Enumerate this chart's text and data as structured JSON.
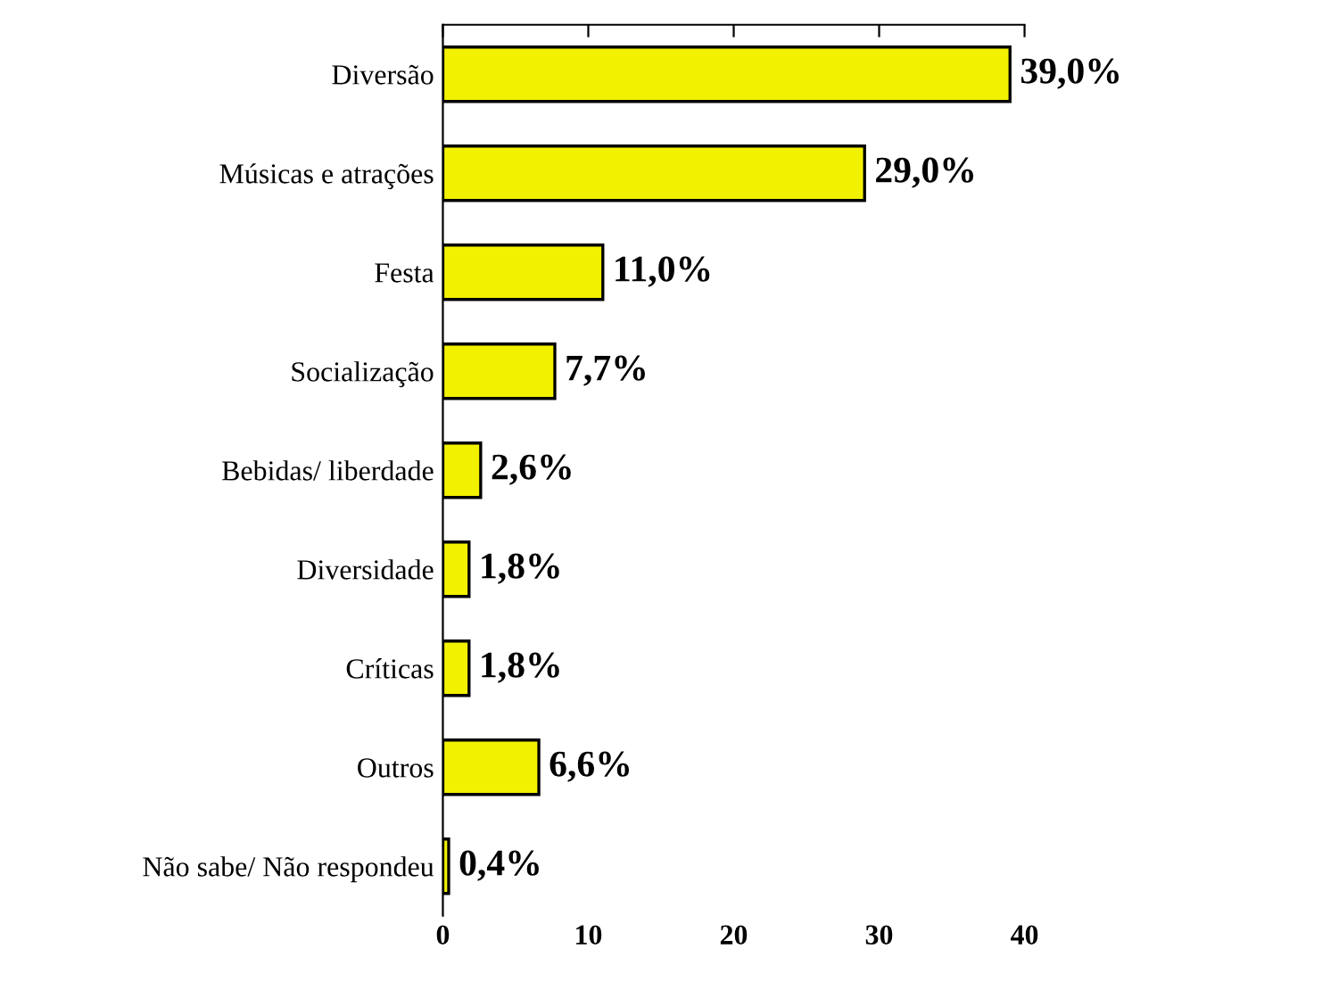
{
  "chart_data": {
    "type": "bar",
    "orientation": "horizontal",
    "categories": [
      "Diversão",
      "Músicas e atrações",
      "Festa",
      "Socialização",
      "Bebidas/ liberdade",
      "Diversidade",
      "Críticas",
      "Outros",
      "Não sabe/ Não respondeu"
    ],
    "values": [
      39.0,
      29.0,
      11.0,
      7.7,
      2.6,
      1.8,
      1.8,
      6.6,
      0.4
    ],
    "value_labels": [
      "39,0%",
      "29,0%",
      "11,0%",
      "7,7%",
      "2,6%",
      "1,8%",
      "1,8%",
      "6,6%",
      "0,4%"
    ],
    "color": "#f2f200",
    "xlim": [
      0,
      40
    ],
    "xticks": [
      0,
      10,
      20,
      30,
      40
    ],
    "grid": false
  }
}
